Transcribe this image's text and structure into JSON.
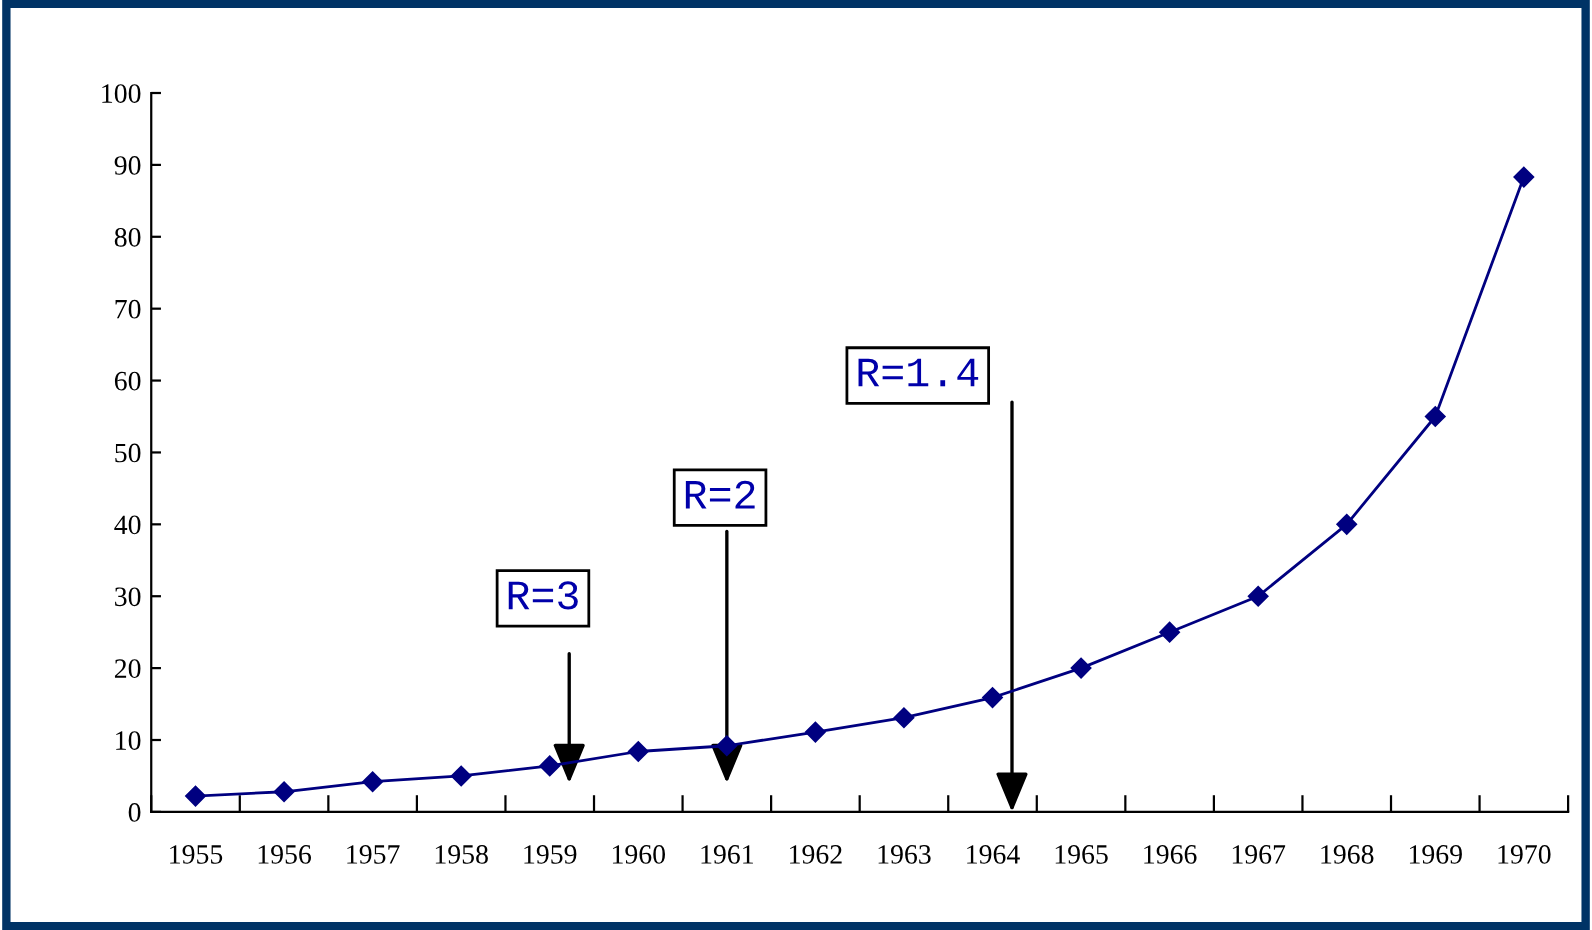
{
  "chart_data": {
    "type": "line",
    "categories": [
      "1955",
      "1956",
      "1957",
      "1958",
      "1959",
      "1960",
      "1961",
      "1962",
      "1963",
      "1964",
      "1965",
      "1966",
      "1967",
      "1968",
      "1969",
      "1970"
    ],
    "series": [
      {
        "color": "#000080",
        "values": [
          2.2,
          2.8,
          4.2,
          5,
          6.4,
          8.4,
          9.2,
          11.1,
          13.1,
          15.9,
          20,
          25,
          30,
          40,
          55,
          88.3
        ]
      }
    ],
    "ylim": [
      0,
      100
    ],
    "yticks": [
      0,
      10,
      20,
      30,
      40,
      50,
      60,
      70,
      80,
      90,
      100
    ],
    "marker": "diamond",
    "grid": false,
    "legend": false,
    "annotations": [
      "R=3",
      "R=2",
      "R=1.4"
    ]
  }
}
